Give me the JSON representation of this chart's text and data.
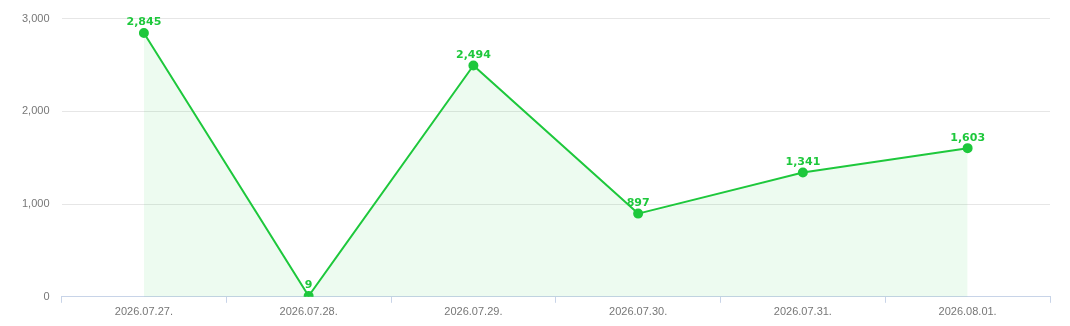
{
  "chart_data": {
    "type": "area",
    "categories": [
      "2026.07.27.",
      "2026.07.28.",
      "2026.07.29.",
      "2026.07.30.",
      "2026.07.31.",
      "2026.08.01."
    ],
    "series": [
      {
        "color": "#1ec83c",
        "values": [
          2845,
          9,
          2494,
          897,
          1341,
          1603
        ],
        "value_labels": [
          "2,845",
          "9",
          "2,494",
          "897",
          "1,341",
          "1,603"
        ]
      }
    ],
    "ylim": [
      0,
      3000
    ],
    "yticks": [
      0,
      {
        "value": 1000,
        "label": "1,000"
      },
      {
        "value": 2000,
        "label": "2,000"
      },
      {
        "value": 3000,
        "label": "3,000"
      }
    ],
    "grid": "y",
    "legend": false,
    "marker": "circle"
  }
}
